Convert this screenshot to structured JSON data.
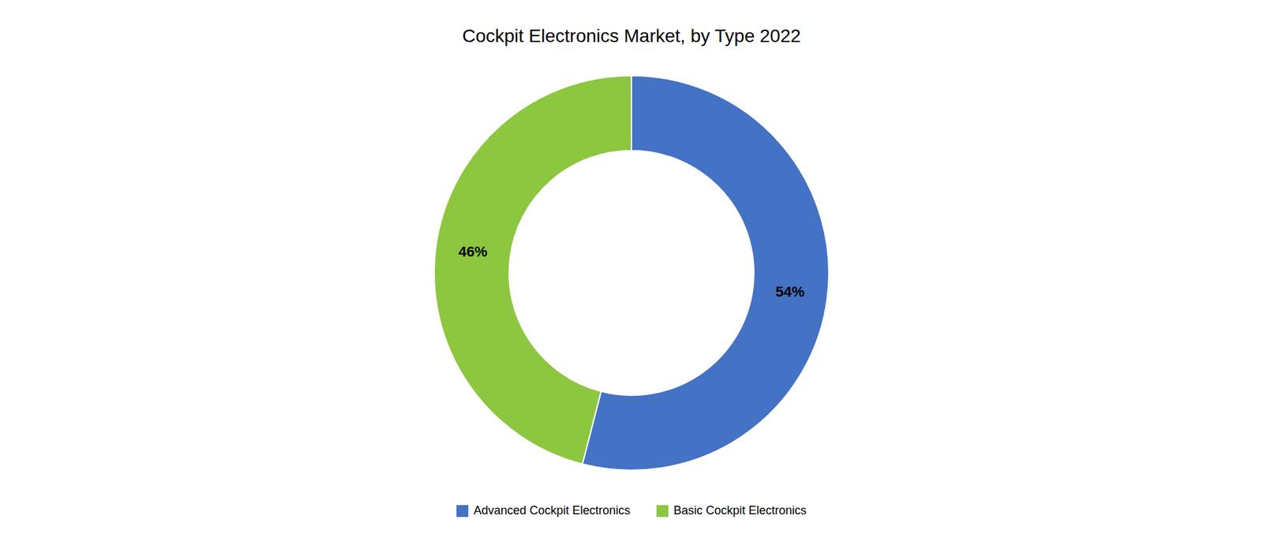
{
  "chart_data": {
    "type": "donut",
    "title": "Cockpit Electronics Market, by Type 2022",
    "categories": [
      "Advanced Cockpit Electronics",
      "Basic Cockpit Electronics"
    ],
    "values": [
      54,
      46
    ],
    "value_labels": [
      "54%",
      "46%"
    ],
    "colors": [
      "#4472C4",
      "#8DC63F"
    ],
    "data_labels": true,
    "legend": "bottom"
  }
}
